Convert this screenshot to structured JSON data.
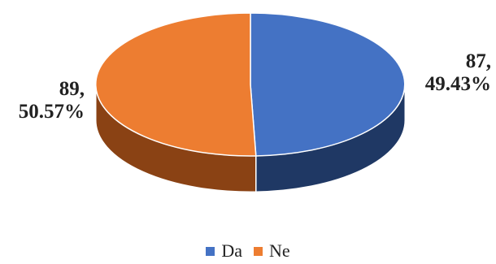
{
  "chart_data": {
    "type": "pie",
    "title": "",
    "slices": [
      {
        "label": "Da",
        "value": 87,
        "percent": "49.43%",
        "color": "#4472C4",
        "side_color": "#1F3864"
      },
      {
        "label": "Ne",
        "value": 89,
        "percent": "50.57%",
        "color": "#ED7D31",
        "side_color": "#8A4214"
      }
    ],
    "legend": {
      "placement": "bottom"
    },
    "data_labels": [
      {
        "value_text": "87,",
        "percent_text": "49.43%"
      },
      {
        "value_text": "89,",
        "percent_text": "50.57%"
      }
    ]
  }
}
